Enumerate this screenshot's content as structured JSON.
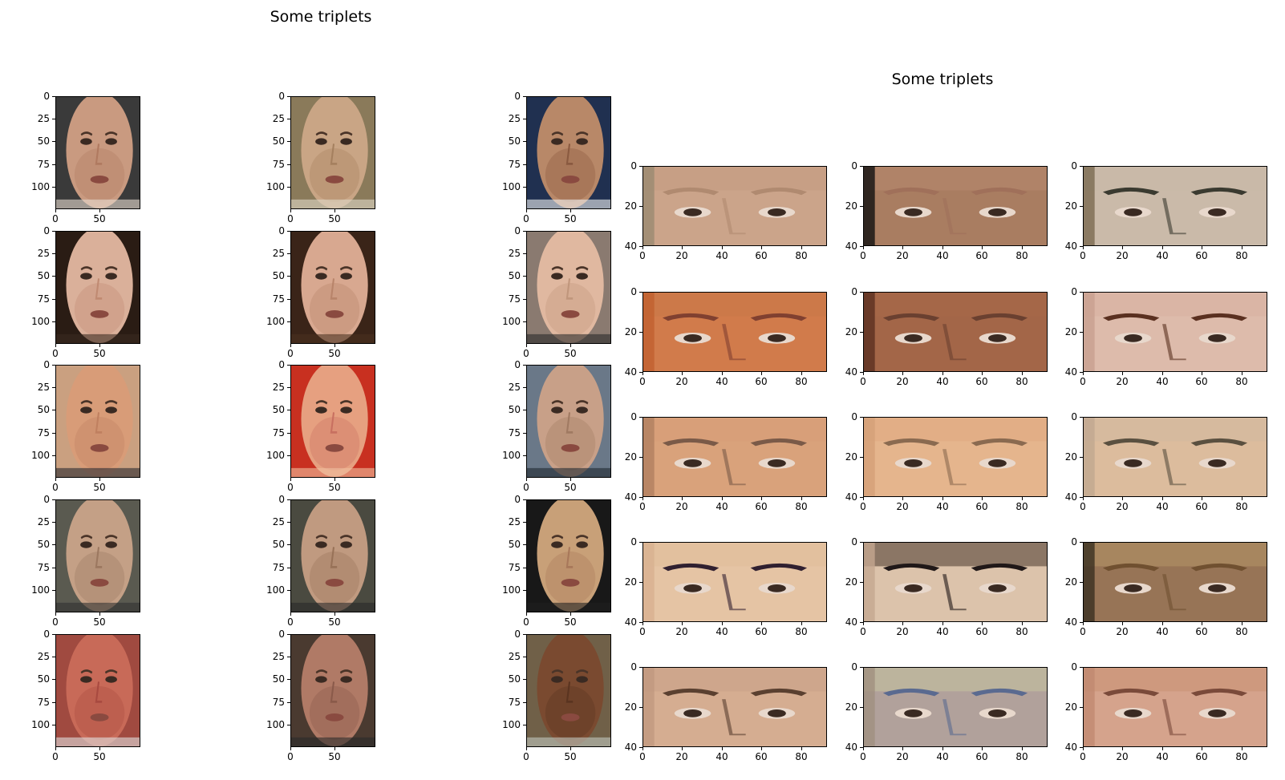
{
  "figures": [
    {
      "title": "Some triplets",
      "chart_data": {
        "type": "image-grid",
        "rows": 5,
        "cols": 3,
        "image_width": 97,
        "image_height": 125,
        "xlim": [
          0,
          97
        ],
        "ylim": [
          125,
          0
        ],
        "xticks": [
          0,
          50
        ],
        "yticks": [
          0,
          25,
          50,
          75,
          100
        ],
        "xtick_labels": [
          "0",
          "50"
        ],
        "ytick_labels": [
          "0",
          "25",
          "50",
          "75",
          "100"
        ],
        "cells": [
          {
            "colors": [
              "#3a3a3a",
              "#c99a80",
              "#b07a60",
              "#e8dcd0"
            ]
          },
          {
            "colors": [
              "#8a7a5a",
              "#c9a585",
              "#a5805f",
              "#e0d8c8"
            ]
          },
          {
            "colors": [
              "#203050",
              "#b88868",
              "#8a5a40",
              "#f0f0f0"
            ]
          },
          {
            "colors": [
              "#2a1c14",
              "#dab09a",
              "#c08a72",
              "#3a2a20"
            ]
          },
          {
            "colors": [
              "#3a2418",
              "#d8a890",
              "#b8846a",
              "#4a3020"
            ]
          },
          {
            "colors": [
              "#8a7a70",
              "#e0b8a0",
              "#c0967c",
              "#2a2a2a"
            ]
          },
          {
            "colors": [
              "#caa080",
              "#d89c78",
              "#c08060",
              "#2a2a30"
            ]
          },
          {
            "colors": [
              "#c83020",
              "#e6a080",
              "#c87060",
              "#f0c0a0"
            ]
          },
          {
            "colors": [
              "#6a7888",
              "#c8a088",
              "#a07a62",
              "#202830"
            ]
          },
          {
            "colors": [
              "#5a5a50",
              "#c4a086",
              "#9c7860",
              "#303030"
            ]
          },
          {
            "colors": [
              "#4a4a40",
              "#c09a80",
              "#987258",
              "#2a2a2a"
            ]
          },
          {
            "colors": [
              "#181818",
              "#c8a078",
              "#a8785a",
              "#202020"
            ]
          },
          {
            "colors": [
              "#a04a40",
              "#c86a58",
              "#a84a40",
              "#e0e0e0"
            ]
          },
          {
            "colors": [
              "#4a3a30",
              "#b07a66",
              "#8a5a4a",
              "#2a2a2a"
            ]
          },
          {
            "colors": [
              "#706048",
              "#7a4a30",
              "#5a3420",
              "#c0c8c0"
            ]
          }
        ]
      }
    },
    {
      "title": "Some triplets",
      "chart_data": {
        "type": "image-grid",
        "rows": 5,
        "cols": 3,
        "image_width": 93,
        "image_height": 40,
        "xlim": [
          0,
          93
        ],
        "ylim": [
          40,
          0
        ],
        "xticks": [
          0,
          20,
          40,
          60,
          80
        ],
        "yticks": [
          0,
          20,
          40
        ],
        "xtick_labels": [
          "0",
          "20",
          "40",
          "60",
          "80"
        ],
        "ytick_labels": [
          "0",
          "20",
          "40"
        ],
        "cells": [
          {
            "colors": [
              "#9a8a70",
              "#d4a88e",
              "#b08a70",
              "#c49a80"
            ]
          },
          {
            "colors": [
              "#101010",
              "#c49070",
              "#a0705a",
              "#b88a70"
            ]
          },
          {
            "colors": [
              "#7a6a50",
              "#d8c8b8",
              "#3a3a30",
              "#c8b8a8"
            ]
          },
          {
            "colors": [
              "#c06030",
              "#d48050",
              "#804030",
              "#c87848"
            ]
          },
          {
            "colors": [
              "#5a3020",
              "#b07050",
              "#6a4030",
              "#a86848"
            ]
          },
          {
            "colors": [
              "#c8a090",
              "#e0c0b0",
              "#5a3020",
              "#d8b0a0"
            ]
          },
          {
            "colors": [
              "#b08060",
              "#e0a880",
              "#7a5a48",
              "#d89c78"
            ]
          },
          {
            "colors": [
              "#d4a078",
              "#e8b890",
              "#8a6a50",
              "#e0a880"
            ]
          },
          {
            "colors": [
              "#c0a890",
              "#e0c0a0",
              "#5a5040",
              "#d0b8a0"
            ]
          },
          {
            "colors": [
              "#d8b090",
              "#e8c8a8",
              "#302030",
              "#e0bc98"
            ]
          },
          {
            "colors": [
              "#c4a890",
              "#e0c8b0",
              "#201818",
              "#3a2a20"
            ]
          },
          {
            "colors": [
              "#3a3020",
              "#a88060",
              "#705030",
              "#b89868"
            ]
          },
          {
            "colors": [
              "#c09880",
              "#d8b094",
              "#5a4030",
              "#c8a088"
            ]
          },
          {
            "colors": [
              "#a09080",
              "#b4a4a0",
              "#5a6a90",
              "#c8c8a0"
            ]
          },
          {
            "colors": [
              "#c08870",
              "#d8a890",
              "#7a4a3a",
              "#c89070"
            ]
          }
        ]
      }
    }
  ]
}
